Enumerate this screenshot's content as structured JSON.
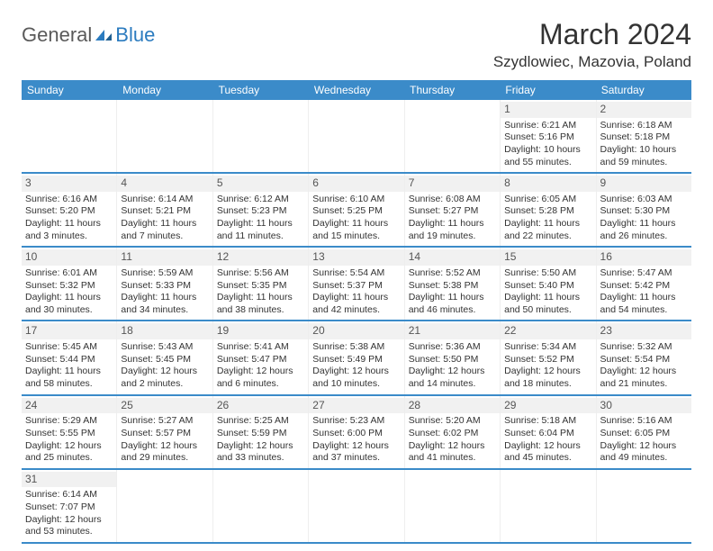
{
  "logo": {
    "text1": "General",
    "text2": "Blue"
  },
  "title": "March 2024",
  "location": "Szydlowiec, Mazovia, Poland",
  "header_bg": "#3b8bc9",
  "week_border": "#3b8bc9",
  "daynum_bg": "#f1f1f1",
  "weekdays": [
    "Sunday",
    "Monday",
    "Tuesday",
    "Wednesday",
    "Thursday",
    "Friday",
    "Saturday"
  ],
  "weeks": [
    [
      {
        "empty": true
      },
      {
        "empty": true
      },
      {
        "empty": true
      },
      {
        "empty": true
      },
      {
        "empty": true
      },
      {
        "num": "1",
        "sunrise": "6:21 AM",
        "sunset": "5:16 PM",
        "daylight": "10 hours and 55 minutes."
      },
      {
        "num": "2",
        "sunrise": "6:18 AM",
        "sunset": "5:18 PM",
        "daylight": "10 hours and 59 minutes."
      }
    ],
    [
      {
        "num": "3",
        "sunrise": "6:16 AM",
        "sunset": "5:20 PM",
        "daylight": "11 hours and 3 minutes."
      },
      {
        "num": "4",
        "sunrise": "6:14 AM",
        "sunset": "5:21 PM",
        "daylight": "11 hours and 7 minutes."
      },
      {
        "num": "5",
        "sunrise": "6:12 AM",
        "sunset": "5:23 PM",
        "daylight": "11 hours and 11 minutes."
      },
      {
        "num": "6",
        "sunrise": "6:10 AM",
        "sunset": "5:25 PM",
        "daylight": "11 hours and 15 minutes."
      },
      {
        "num": "7",
        "sunrise": "6:08 AM",
        "sunset": "5:27 PM",
        "daylight": "11 hours and 19 minutes."
      },
      {
        "num": "8",
        "sunrise": "6:05 AM",
        "sunset": "5:28 PM",
        "daylight": "11 hours and 22 minutes."
      },
      {
        "num": "9",
        "sunrise": "6:03 AM",
        "sunset": "5:30 PM",
        "daylight": "11 hours and 26 minutes."
      }
    ],
    [
      {
        "num": "10",
        "sunrise": "6:01 AM",
        "sunset": "5:32 PM",
        "daylight": "11 hours and 30 minutes."
      },
      {
        "num": "11",
        "sunrise": "5:59 AM",
        "sunset": "5:33 PM",
        "daylight": "11 hours and 34 minutes."
      },
      {
        "num": "12",
        "sunrise": "5:56 AM",
        "sunset": "5:35 PM",
        "daylight": "11 hours and 38 minutes."
      },
      {
        "num": "13",
        "sunrise": "5:54 AM",
        "sunset": "5:37 PM",
        "daylight": "11 hours and 42 minutes."
      },
      {
        "num": "14",
        "sunrise": "5:52 AM",
        "sunset": "5:38 PM",
        "daylight": "11 hours and 46 minutes."
      },
      {
        "num": "15",
        "sunrise": "5:50 AM",
        "sunset": "5:40 PM",
        "daylight": "11 hours and 50 minutes."
      },
      {
        "num": "16",
        "sunrise": "5:47 AM",
        "sunset": "5:42 PM",
        "daylight": "11 hours and 54 minutes."
      }
    ],
    [
      {
        "num": "17",
        "sunrise": "5:45 AM",
        "sunset": "5:44 PM",
        "daylight": "11 hours and 58 minutes."
      },
      {
        "num": "18",
        "sunrise": "5:43 AM",
        "sunset": "5:45 PM",
        "daylight": "12 hours and 2 minutes."
      },
      {
        "num": "19",
        "sunrise": "5:41 AM",
        "sunset": "5:47 PM",
        "daylight": "12 hours and 6 minutes."
      },
      {
        "num": "20",
        "sunrise": "5:38 AM",
        "sunset": "5:49 PM",
        "daylight": "12 hours and 10 minutes."
      },
      {
        "num": "21",
        "sunrise": "5:36 AM",
        "sunset": "5:50 PM",
        "daylight": "12 hours and 14 minutes."
      },
      {
        "num": "22",
        "sunrise": "5:34 AM",
        "sunset": "5:52 PM",
        "daylight": "12 hours and 18 minutes."
      },
      {
        "num": "23",
        "sunrise": "5:32 AM",
        "sunset": "5:54 PM",
        "daylight": "12 hours and 21 minutes."
      }
    ],
    [
      {
        "num": "24",
        "sunrise": "5:29 AM",
        "sunset": "5:55 PM",
        "daylight": "12 hours and 25 minutes."
      },
      {
        "num": "25",
        "sunrise": "5:27 AM",
        "sunset": "5:57 PM",
        "daylight": "12 hours and 29 minutes."
      },
      {
        "num": "26",
        "sunrise": "5:25 AM",
        "sunset": "5:59 PM",
        "daylight": "12 hours and 33 minutes."
      },
      {
        "num": "27",
        "sunrise": "5:23 AM",
        "sunset": "6:00 PM",
        "daylight": "12 hours and 37 minutes."
      },
      {
        "num": "28",
        "sunrise": "5:20 AM",
        "sunset": "6:02 PM",
        "daylight": "12 hours and 41 minutes."
      },
      {
        "num": "29",
        "sunrise": "5:18 AM",
        "sunset": "6:04 PM",
        "daylight": "12 hours and 45 minutes."
      },
      {
        "num": "30",
        "sunrise": "5:16 AM",
        "sunset": "6:05 PM",
        "daylight": "12 hours and 49 minutes."
      }
    ],
    [
      {
        "num": "31",
        "sunrise": "6:14 AM",
        "sunset": "7:07 PM",
        "daylight": "12 hours and 53 minutes."
      },
      {
        "empty": true
      },
      {
        "empty": true
      },
      {
        "empty": true
      },
      {
        "empty": true
      },
      {
        "empty": true
      },
      {
        "empty": true
      }
    ]
  ],
  "labels": {
    "sunrise": "Sunrise:",
    "sunset": "Sunset:",
    "daylight": "Daylight:"
  }
}
